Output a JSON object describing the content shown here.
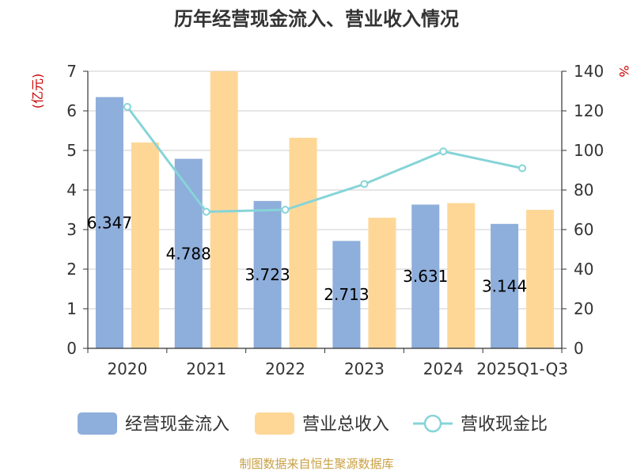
{
  "chart_data": {
    "type": "bar",
    "title": "历年经营现金流入、营业收入情况",
    "y_left_unit": "(亿元)",
    "y_right_unit": "%",
    "categories": [
      "2020",
      "2021",
      "2022",
      "2023",
      "2024",
      "2025Q1-Q3"
    ],
    "y_left_ticks": [
      "0",
      "1",
      "2",
      "3",
      "4",
      "5",
      "6",
      "7"
    ],
    "y_right_ticks": [
      "0",
      "20",
      "40",
      "60",
      "80",
      "100",
      "120",
      "140"
    ],
    "ylim_left": [
      0,
      7
    ],
    "ylim_right": [
      0,
      140
    ],
    "series": [
      {
        "name": "经营现金流入",
        "type": "bar",
        "axis": "left",
        "color": "#8eaedb",
        "values": [
          6.347,
          4.788,
          3.723,
          2.713,
          3.631,
          3.144
        ],
        "labels": [
          "6.347",
          "4.788",
          "3.723",
          "2.713",
          "3.631",
          "3.144"
        ]
      },
      {
        "name": "营业总收入",
        "type": "bar",
        "axis": "left",
        "color": "#fed797",
        "values": [
          5.2,
          7.0,
          5.32,
          3.3,
          3.67,
          3.5
        ]
      },
      {
        "name": "营收现金比",
        "type": "line",
        "axis": "right",
        "color": "#86d4d8",
        "values": [
          122,
          69,
          70,
          83,
          99.5,
          91
        ]
      }
    ],
    "legend_position": "bottom",
    "grid": true,
    "source": "制图数据来自恒生聚源数据库"
  }
}
